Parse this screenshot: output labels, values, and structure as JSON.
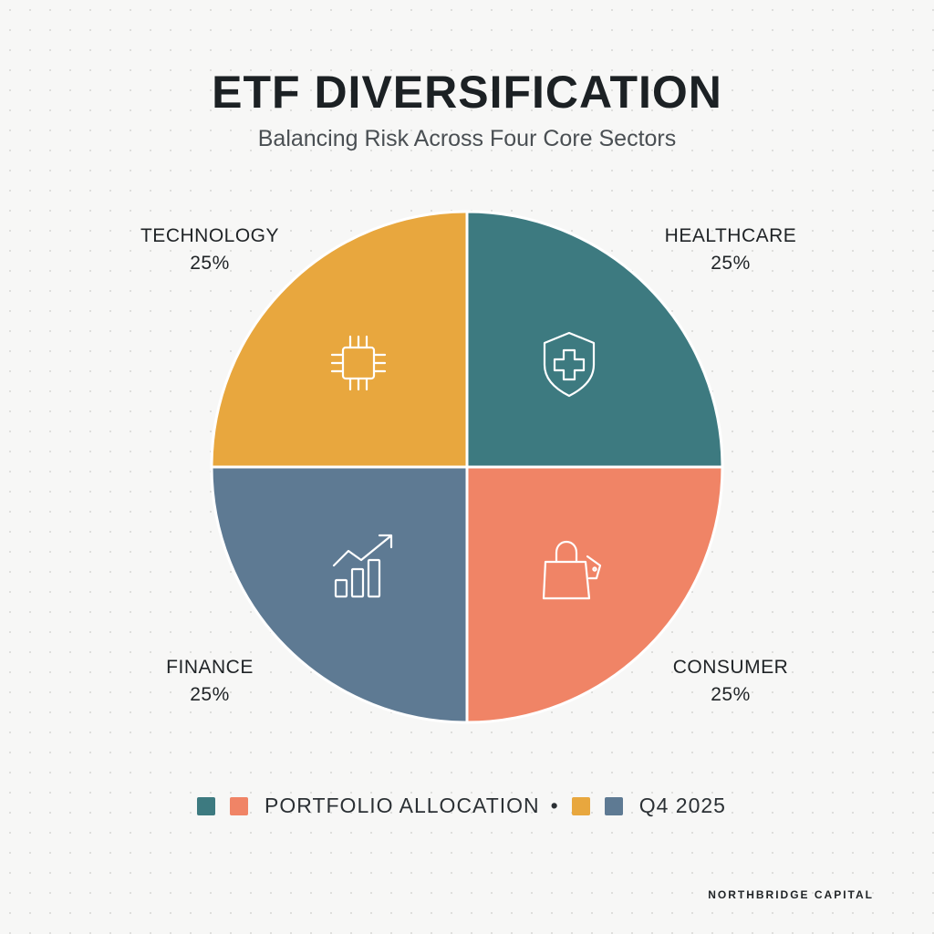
{
  "title": "ETF DIVERSIFICATION",
  "subtitle": "Balancing Risk Across Four Core Sectors",
  "chart_data": {
    "type": "pie",
    "title": "ETF DIVERSIFICATION",
    "subtitle": "Balancing Risk Across Four Core Sectors",
    "slices": [
      {
        "name": "TECHNOLOGY",
        "value": 25,
        "label": "25%",
        "color": "#3d7a80",
        "icon": "microchip-icon"
      },
      {
        "name": "HEALTHCARE",
        "value": 25,
        "label": "25%",
        "color": "#f08466",
        "icon": "medical-shield-icon"
      },
      {
        "name": "CONSUMER",
        "value": 25,
        "label": "25%",
        "color": "#5e7a93",
        "icon": "shopping-bag-icon"
      },
      {
        "name": "FINANCE",
        "value": 25,
        "label": "25%",
        "color": "#e8a73e",
        "icon": "growth-chart-icon"
      }
    ],
    "legend_placement": "bottom"
  },
  "legend": {
    "text_left": "PORTFOLIO ALLOCATION",
    "separator": "•",
    "text_right": "Q4 2025",
    "swatch_colors": [
      "#3d7a80",
      "#f08466",
      "#e8a73e",
      "#5e7a93"
    ]
  },
  "brand": "NORTHBRIDGE CAPITAL"
}
